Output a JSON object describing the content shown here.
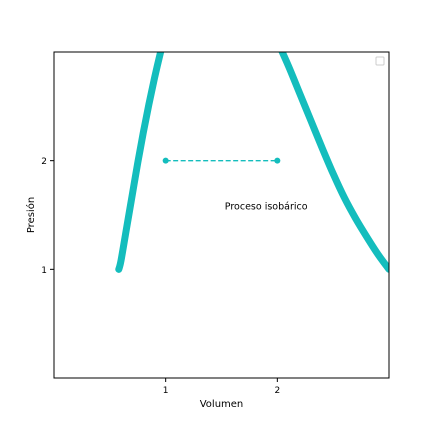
{
  "chart_data": {
    "type": "line",
    "title": "",
    "xlabel": "Volumen",
    "ylabel": "Presión",
    "xlim": [
      0,
      3
    ],
    "ylim": [
      0,
      3
    ],
    "x_ticks": [
      1,
      2
    ],
    "y_ticks": [
      1,
      2
    ],
    "grid": false,
    "legend": "top-right",
    "legend_entries": [],
    "series": [
      {
        "style": "thick-curve",
        "color": "#14bdbd",
        "x": [
          0.58,
          0.6,
          0.65,
          0.7,
          0.75,
          0.8,
          0.85,
          0.9,
          0.95,
          1.0
        ],
        "y": [
          1.0,
          1.08,
          1.38,
          1.68,
          1.98,
          2.26,
          2.52,
          2.76,
          2.98,
          3.18
        ]
      },
      {
        "style": "thick-curve",
        "color": "#14bdbd",
        "x": [
          2.0,
          2.1,
          2.2,
          2.3,
          2.4,
          2.5,
          2.6,
          2.7,
          2.8,
          2.9,
          3.0
        ],
        "y": [
          3.1,
          2.87,
          2.62,
          2.37,
          2.12,
          1.88,
          1.66,
          1.47,
          1.3,
          1.14,
          1.0
        ]
      },
      {
        "style": "dashed-markers",
        "color": "#14bdbd",
        "x": [
          1,
          2
        ],
        "y": [
          2,
          2
        ]
      }
    ],
    "annotations": [
      {
        "text": "Proceso isobárico",
        "x": 1.9,
        "y": 1.55
      }
    ]
  }
}
